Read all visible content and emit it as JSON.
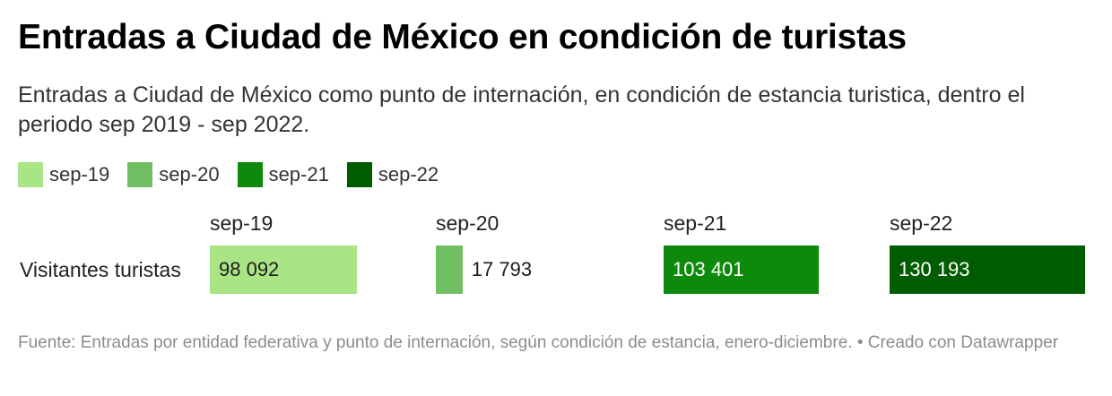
{
  "title": "Entradas a Ciudad de México en condición de turistas",
  "subtitle": "Entradas a Ciudad de México como punto de internación, en condición de estancia turistica, dentro el periodo sep 2019 - sep 2022.",
  "footer": "Fuente: Entradas por entidad federativa y punto de internación, según condición de estancia, enero-diciembre. • Creado con Datawrapper",
  "chart_data": {
    "type": "bar",
    "title": "Entradas a Ciudad de México en condición de turistas",
    "subtitle": "Entradas a Ciudad de México como punto de internación, en condición de estancia turistica, dentro el periodo sep 2019 - sep 2022.",
    "row_label": "Visitantes turistas",
    "legend_placement": "top-left",
    "xlim": [
      0,
      130193
    ],
    "series": [
      {
        "name": "sep-19",
        "values": [
          98092
        ],
        "label": "98 092",
        "color": "#a9e585"
      },
      {
        "name": "sep-20",
        "values": [
          17793
        ],
        "label": "17 793",
        "color": "#70bf62"
      },
      {
        "name": "sep-21",
        "values": [
          103401
        ],
        "label": "103 401",
        "color": "#0d8a0b"
      },
      {
        "name": "sep-22",
        "values": [
          130193
        ],
        "label": "130 193",
        "color": "#005c00"
      }
    ]
  }
}
